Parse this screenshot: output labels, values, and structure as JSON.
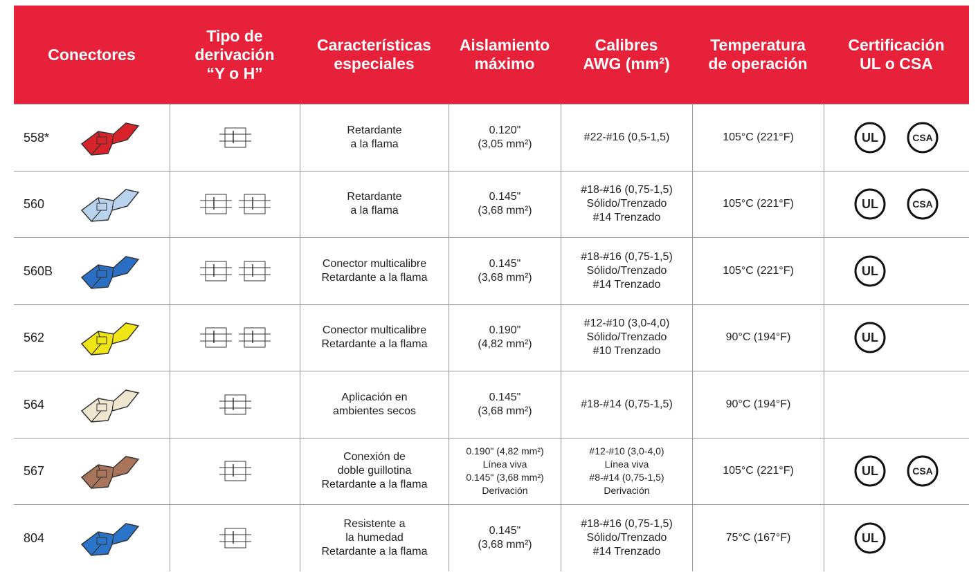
{
  "table": {
    "header": [
      [
        "Conectores"
      ],
      [
        "Tipo de",
        "derivación",
        "“Y o H”"
      ],
      [
        "Características",
        "especiales"
      ],
      [
        "Aislamiento",
        "máximo"
      ],
      [
        "Calibres",
        "AWG (mm²)"
      ],
      [
        "Temperatura",
        "de operación"
      ],
      [
        "Certificación",
        "UL o CSA"
      ]
    ],
    "rows": [
      {
        "connector": "558*",
        "features": [
          "Retardante",
          "a la flama"
        ],
        "insulation": [
          "0.120\"",
          "(3,05 mm²)"
        ],
        "gauges": [
          "#22-#16 (0,5-1,5)"
        ],
        "temperature": "105°C (221°F)",
        "certifications": [
          "UL",
          "CSA"
        ]
      },
      {
        "connector": "560",
        "features": [
          "Retardante",
          "a la flama"
        ],
        "insulation": [
          "0.145\"",
          "(3,68 mm²)"
        ],
        "gauges": [
          "#18-#16 (0,75-1,5)",
          "Sólido/Trenzado",
          "#14 Trenzado"
        ],
        "temperature": "105°C (221°F)",
        "certifications": [
          "UL",
          "CSA"
        ]
      },
      {
        "connector": "560B",
        "features": [
          "Conector multicalibre",
          "Retardante a la flama"
        ],
        "insulation": [
          "0.145\"",
          "(3,68 mm²)"
        ],
        "gauges": [
          "#18-#16 (0,75-1,5)",
          "Sólido/Trenzado",
          "#14 Trenzado"
        ],
        "temperature": "105°C (221°F)",
        "certifications": [
          "UL"
        ]
      },
      {
        "connector": "562",
        "features": [
          "Conector multicalibre",
          "Retardante a la flama"
        ],
        "insulation": [
          "0.190\"",
          "(4,82 mm²)"
        ],
        "gauges": [
          "#12-#10 (3,0-4,0)",
          "Sólido/Trenzado",
          "#10 Trenzado"
        ],
        "temperature": "90°C (194°F)",
        "certifications": [
          "UL"
        ]
      },
      {
        "connector": "564",
        "features": [
          "Aplicación en",
          "ambientes secos"
        ],
        "insulation": [
          "0.145\"",
          "(3,68 mm²)"
        ],
        "gauges": [
          "#18-#14 (0,75-1,5)"
        ],
        "temperature": "90°C (194°F)",
        "certifications": []
      },
      {
        "connector": "567",
        "features": [
          "Conexión de",
          "doble guillotina",
          "Retardante a la flama"
        ],
        "insulation": [
          "0.190\" (4,82 mm²)",
          "Línea viva",
          "0.145\" (3,68 mm²)",
          "Derivación"
        ],
        "gauges": [
          "#12-#10 (3,0-4,0)",
          "Línea viva",
          "#8-#14 (0,75-1,5)",
          "Derivación"
        ],
        "temperature": "105°C (221°F)",
        "certifications": [
          "UL",
          "CSA"
        ]
      },
      {
        "connector": "804",
        "features": [
          "Resistente a",
          "la humedad",
          "Retardante a la flama"
        ],
        "insulation": [
          "0.145\"",
          "(3,68 mm²)"
        ],
        "gauges": [
          "#18-#16 (0,75-1,5)",
          "Sólido/Trenzado",
          "#14 Trenzado"
        ],
        "temperature": "75°C (167°F)",
        "certifications": [
          "UL"
        ]
      }
    ]
  }
}
